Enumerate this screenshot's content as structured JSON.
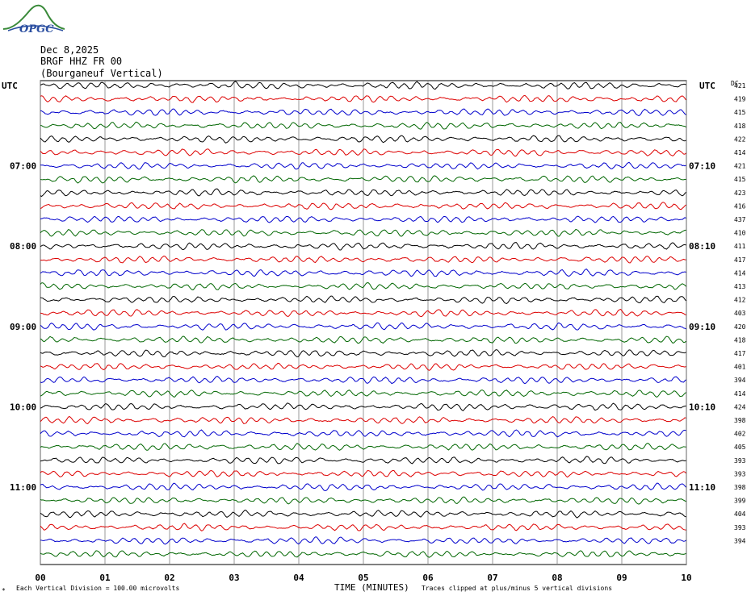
{
  "logo": {
    "text": "OPGC"
  },
  "header": {
    "date": "Dec 8,2025",
    "station": "BRGF HHZ FR 00",
    "location": "(Bourganeuf Vertical)"
  },
  "left_axis_title": "UTC",
  "right_axis_title": "UTC",
  "dc_header": "DC",
  "footer": {
    "scale_note": "Each Vertical Division =  100.00 microvolts",
    "clip_note": "Traces clipped at plus/minus 5 vertical divisions",
    "small_mark": "*"
  },
  "colors": {
    "trace_cycle": [
      "#000000",
      "#dd0000",
      "#0000cc",
      "#006600"
    ],
    "grid": "#808080"
  },
  "chart_data": {
    "type": "line",
    "xlabel": "TIME (MINUTES)",
    "xlim": [
      0,
      10
    ],
    "x_ticks": [
      "00",
      "01",
      "02",
      "03",
      "04",
      "05",
      "06",
      "07",
      "08",
      "09",
      "10"
    ],
    "rows_per_hour": 6,
    "row_count": 36,
    "left_hour_labels": [
      {
        "row": 6,
        "label": "07:00"
      },
      {
        "row": 12,
        "label": "08:00"
      },
      {
        "row": 18,
        "label": "09:00"
      },
      {
        "row": 24,
        "label": "10:00"
      },
      {
        "row": 30,
        "label": "11:00"
      }
    ],
    "right_hour_labels": [
      {
        "row": 6,
        "label": "07:10"
      },
      {
        "row": 12,
        "label": "08:10"
      },
      {
        "row": 18,
        "label": "09:10"
      },
      {
        "row": 24,
        "label": "10:10"
      },
      {
        "row": 30,
        "label": "11:10"
      }
    ],
    "dc_offsets": [
      "421",
      "419",
      "415",
      "418",
      "422",
      "414",
      "421",
      "415",
      "423",
      "416",
      "437",
      "410",
      "411",
      "417",
      "414",
      "413",
      "412",
      "403",
      "420",
      "418",
      "417",
      "401",
      "394",
      "414",
      "424",
      "398",
      "402",
      "405",
      "393",
      "393",
      "398",
      "399",
      "404",
      "393",
      "394"
    ]
  }
}
